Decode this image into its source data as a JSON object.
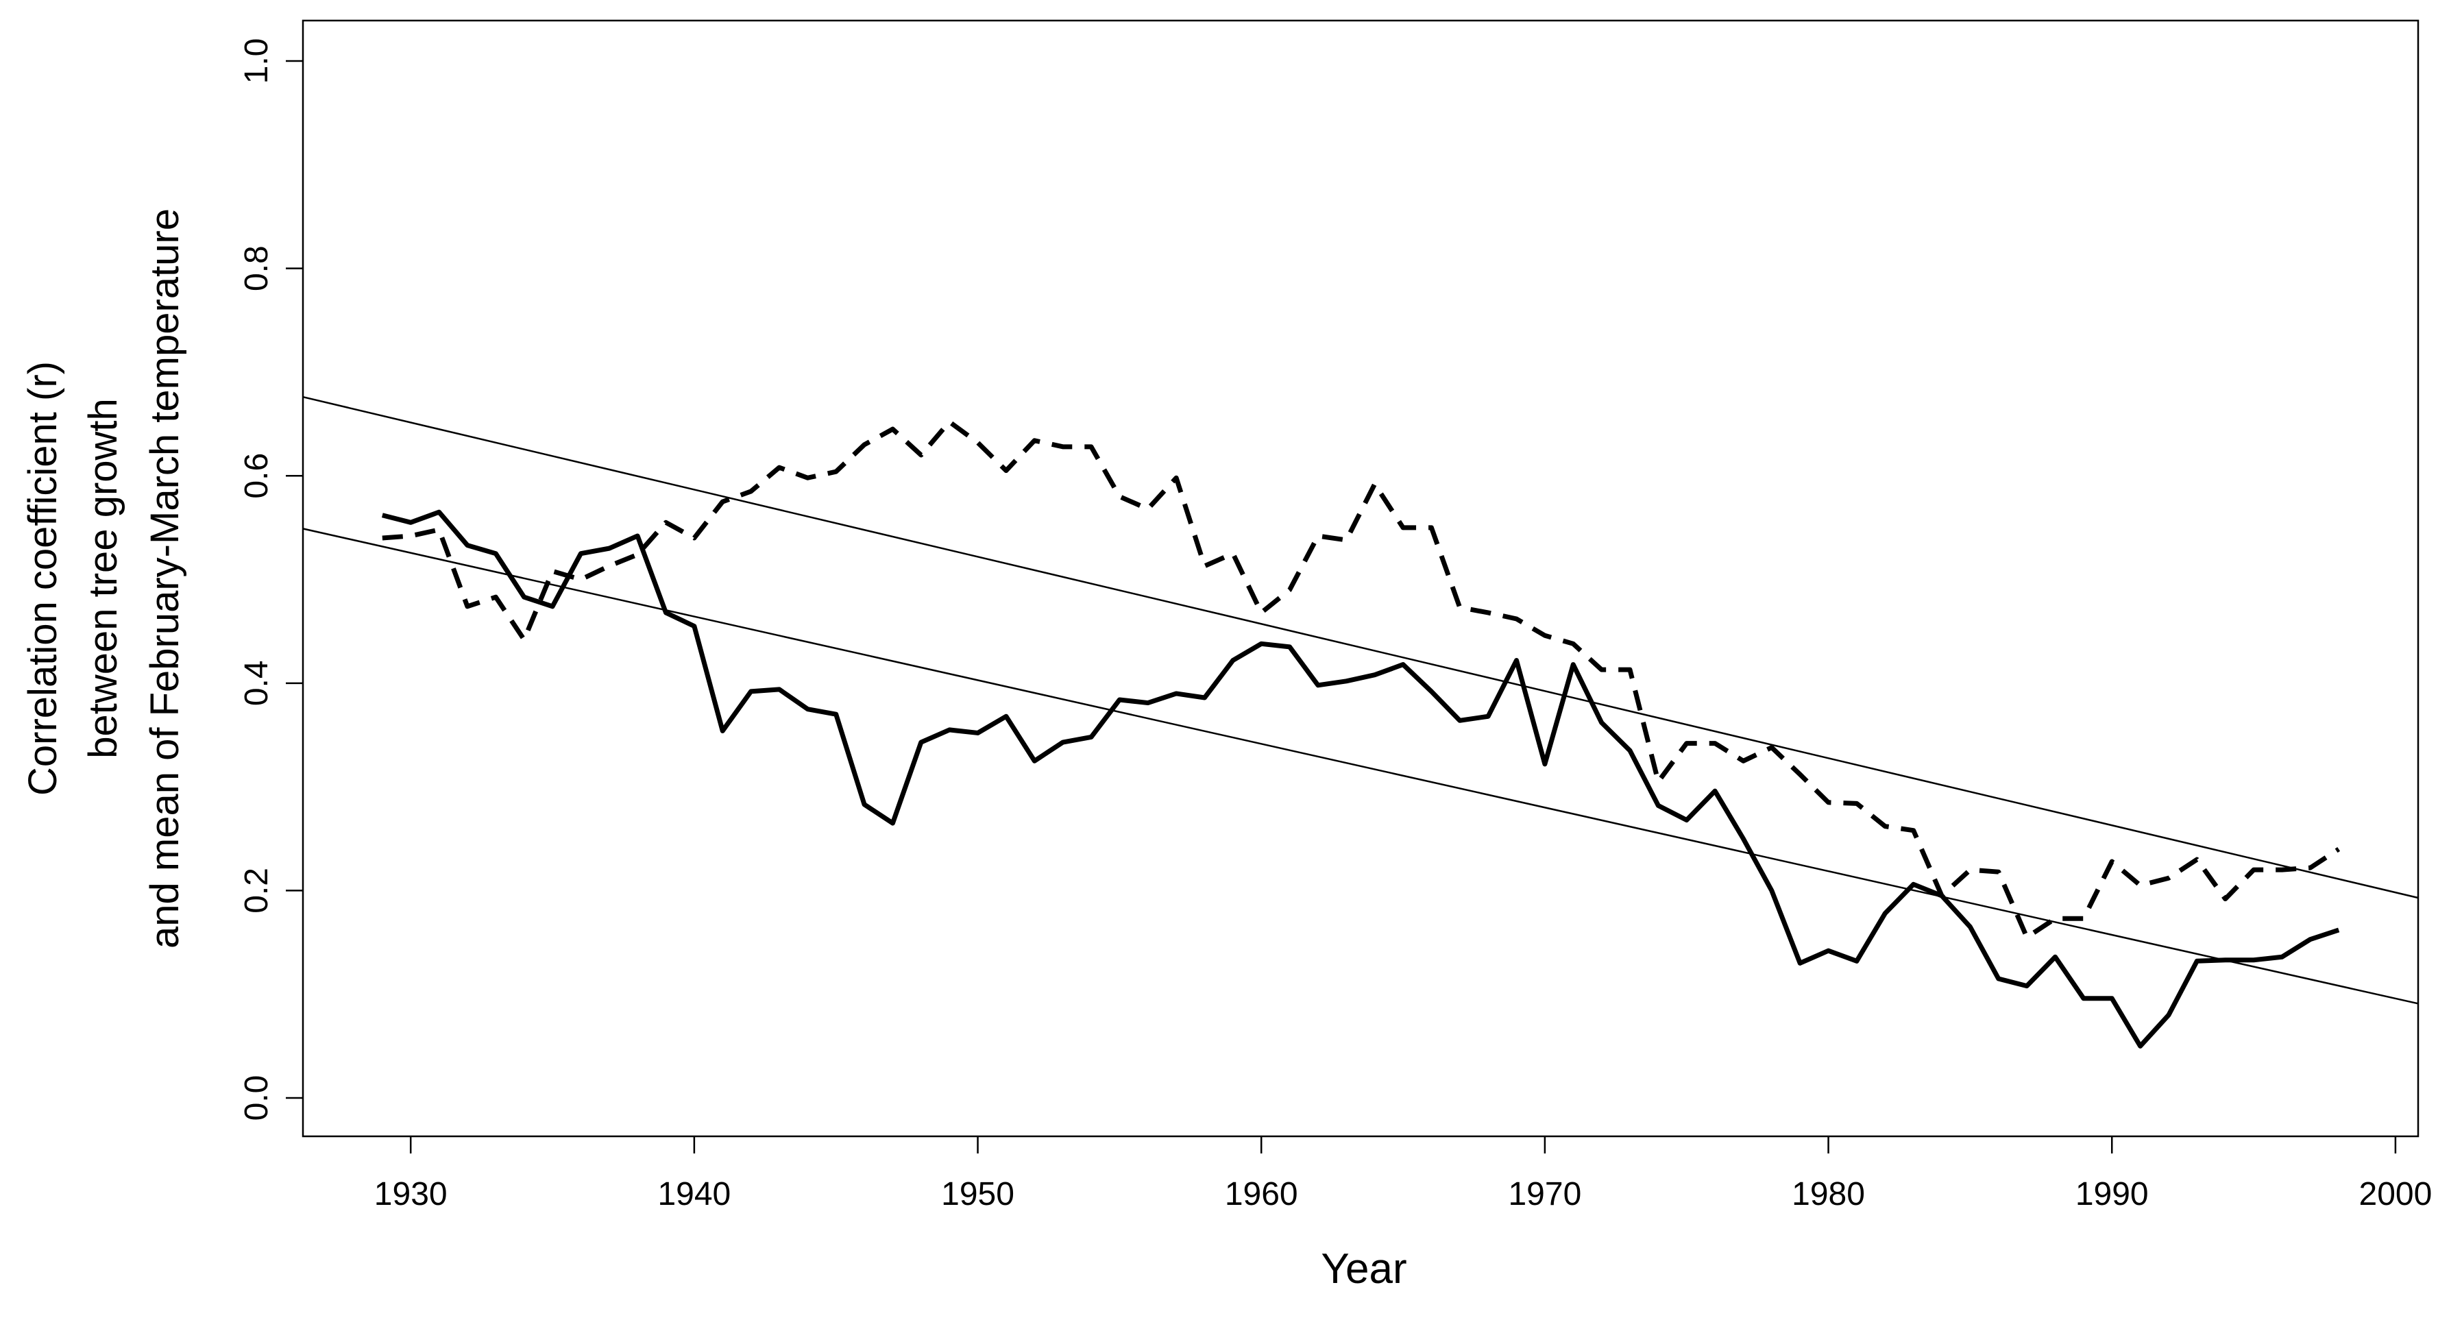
{
  "chart_data": {
    "type": "line",
    "xlabel": "Year",
    "ylabel": [
      "Correlation coefficient (r)",
      "between tree growth",
      "and mean of February-March temperature"
    ],
    "x": [
      1929,
      1930,
      1931,
      1932,
      1933,
      1934,
      1935,
      1936,
      1937,
      1938,
      1939,
      1940,
      1941,
      1942,
      1943,
      1944,
      1945,
      1946,
      1947,
      1948,
      1949,
      1950,
      1951,
      1952,
      1953,
      1954,
      1955,
      1956,
      1957,
      1958,
      1959,
      1960,
      1961,
      1962,
      1963,
      1964,
      1965,
      1966,
      1967,
      1968,
      1969,
      1970,
      1971,
      1972,
      1973,
      1974,
      1975,
      1976,
      1977,
      1978,
      1979,
      1980,
      1981,
      1982,
      1983,
      1984,
      1985,
      1986,
      1987,
      1988,
      1989,
      1990,
      1991,
      1992,
      1993,
      1994,
      1995,
      1996,
      1997,
      1998
    ],
    "series": [
      {
        "color": "#000000",
        "linestyle": "solid",
        "linewidth": 7,
        "values": [
          0.562,
          0.555,
          0.565,
          0.533,
          0.525,
          0.483,
          0.474,
          0.525,
          0.53,
          0.542,
          0.468,
          0.455,
          0.354,
          0.392,
          0.394,
          0.375,
          0.37,
          0.283,
          0.265,
          0.343,
          0.355,
          0.352,
          0.368,
          0.325,
          0.343,
          0.348,
          0.384,
          0.381,
          0.39,
          0.386,
          0.422,
          0.438,
          0.435,
          0.398,
          0.402,
          0.408,
          0.418,
          0.392,
          0.364,
          0.368,
          0.422,
          0.322,
          0.418,
          0.362,
          0.335,
          0.282,
          0.268,
          0.296,
          0.25,
          0.2,
          0.13,
          0.142,
          0.132,
          0.178,
          0.206,
          0.195,
          0.165,
          0.115,
          0.108,
          0.136,
          0.096,
          0.096,
          0.05,
          0.08,
          0.132,
          0.133,
          0.133,
          0.136,
          0.153,
          0.162
        ]
      },
      {
        "color": "#000000",
        "linestyle": "dashed",
        "linewidth": 7,
        "values": [
          0.54,
          0.542,
          0.548,
          0.474,
          0.483,
          0.442,
          0.508,
          0.5,
          0.513,
          0.524,
          0.555,
          0.54,
          0.575,
          0.585,
          0.608,
          0.598,
          0.604,
          0.63,
          0.645,
          0.62,
          0.652,
          0.632,
          0.605,
          0.634,
          0.628,
          0.628,
          0.58,
          0.568,
          0.598,
          0.513,
          0.525,
          0.468,
          0.49,
          0.542,
          0.538,
          0.592,
          0.55,
          0.55,
          0.473,
          0.468,
          0.462,
          0.446,
          0.438,
          0.413,
          0.413,
          0.305,
          0.342,
          0.342,
          0.325,
          0.338,
          0.312,
          0.285,
          0.284,
          0.262,
          0.258,
          0.195,
          0.22,
          0.218,
          0.155,
          0.173,
          0.173,
          0.228,
          0.205,
          0.212,
          0.23,
          0.192,
          0.22,
          0.22,
          0.222,
          0.24
        ]
      },
      {
        "color": "#000000",
        "linestyle": "solid",
        "linewidth": 2.5,
        "x": [
          1926.2,
          2000.8
        ],
        "values": [
          0.676,
          0.193
        ]
      },
      {
        "color": "#000000",
        "linestyle": "solid",
        "linewidth": 2.5,
        "x": [
          1926.2,
          2000.8
        ],
        "values": [
          0.549,
          0.091
        ]
      }
    ],
    "xlim": [
      1926.2,
      2000.8
    ],
    "ylim": [
      -0.037,
      1.039
    ],
    "xticks": [
      1930,
      1940,
      1950,
      1960,
      1970,
      1980,
      1990,
      2000
    ],
    "yticks": [
      {
        "value": 0,
        "label": "0.0"
      },
      0.2,
      0.4,
      0.6,
      0.8,
      {
        "value": 1,
        "label": "1.0"
      }
    ],
    "grid": false
  }
}
